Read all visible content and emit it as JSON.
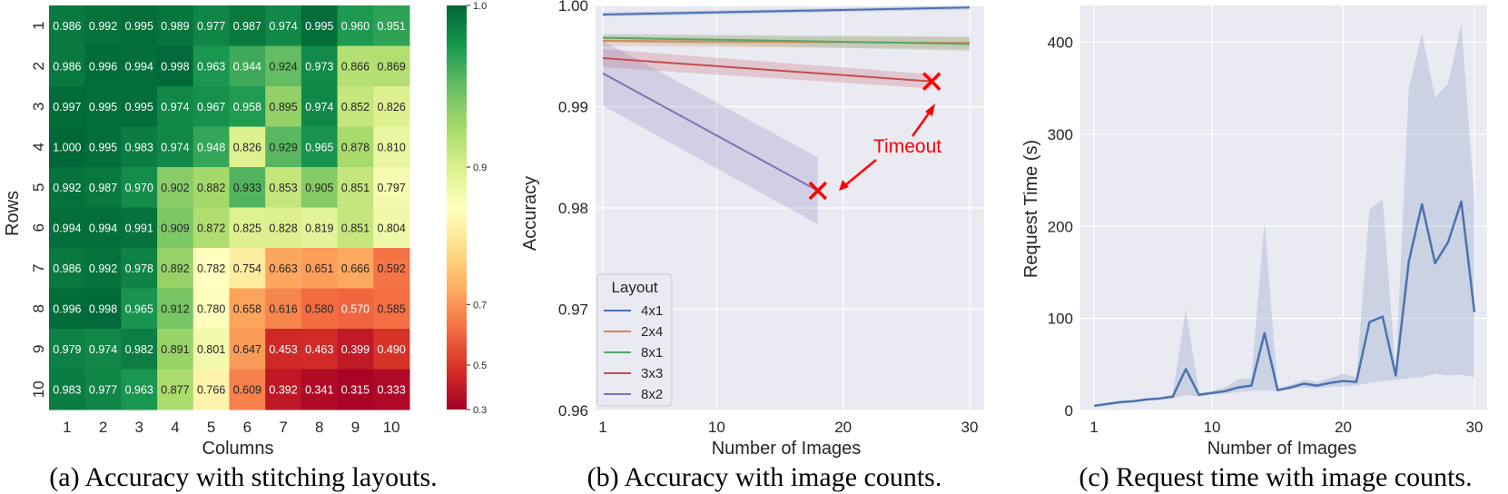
{
  "chart_data": [
    {
      "type": "heatmap",
      "caption": "(a) Accuracy with stitching layouts.",
      "xlabel": "Columns",
      "ylabel": "Rows",
      "x_categories": [
        "1",
        "2",
        "3",
        "4",
        "5",
        "6",
        "7",
        "8",
        "9",
        "10"
      ],
      "y_categories": [
        "1",
        "2",
        "3",
        "4",
        "5",
        "6",
        "7",
        "8",
        "9",
        "10"
      ],
      "values": [
        [
          0.986,
          0.992,
          0.995,
          0.989,
          0.977,
          0.987,
          0.974,
          0.995,
          0.96,
          0.951
        ],
        [
          0.986,
          0.996,
          0.994,
          0.998,
          0.963,
          0.944,
          0.924,
          0.973,
          0.866,
          0.869
        ],
        [
          0.997,
          0.995,
          0.995,
          0.974,
          0.967,
          0.958,
          0.895,
          0.974,
          0.852,
          0.826
        ],
        [
          1.0,
          0.995,
          0.983,
          0.974,
          0.948,
          0.826,
          0.929,
          0.965,
          0.878,
          0.81
        ],
        [
          0.992,
          0.987,
          0.97,
          0.902,
          0.882,
          0.933,
          0.853,
          0.905,
          0.851,
          0.797
        ],
        [
          0.994,
          0.994,
          0.991,
          0.909,
          0.872,
          0.825,
          0.828,
          0.819,
          0.851,
          0.804
        ],
        [
          0.986,
          0.992,
          0.978,
          0.892,
          0.782,
          0.754,
          0.663,
          0.651,
          0.666,
          0.592
        ],
        [
          0.996,
          0.998,
          0.965,
          0.912,
          0.78,
          0.658,
          0.616,
          0.58,
          0.57,
          0.585
        ],
        [
          0.979,
          0.974,
          0.982,
          0.891,
          0.801,
          0.647,
          0.453,
          0.463,
          0.399,
          0.49
        ],
        [
          0.983,
          0.977,
          0.963,
          0.877,
          0.766,
          0.609,
          0.392,
          0.341,
          0.315,
          0.333
        ]
      ],
      "colorbar": {
        "ticks": [
          "1.0",
          "0.9",
          "0.7",
          "0.5",
          "0.3"
        ],
        "tick_values": [
          1.0,
          0.9,
          0.7,
          0.5,
          0.3
        ],
        "colormap": "RdYlGn"
      }
    },
    {
      "type": "line",
      "caption": "(b) Accuracy with image counts.",
      "xlabel": "Number of Images",
      "ylabel": "Accuracy",
      "xlim": [
        1,
        30
      ],
      "ylim": [
        0.96,
        1.0
      ],
      "x_ticks": [
        1,
        10,
        20,
        30
      ],
      "y_ticks": [
        0.96,
        0.97,
        0.98,
        0.99,
        1.0
      ],
      "y_tick_labels": [
        "0.96",
        "0.97",
        "0.98",
        "0.99",
        "1.00"
      ],
      "legend_title": "Layout",
      "legend_position": "lower-left",
      "grid": true,
      "series": [
        {
          "name": "4x1",
          "color": "#4c72b0",
          "x": [
            1,
            30
          ],
          "y": [
            0.9991,
            0.9998
          ],
          "band": [
            0.0002,
            0.0002
          ]
        },
        {
          "name": "2x4",
          "color": "#dd8452",
          "x": [
            1,
            30
          ],
          "y": [
            0.9965,
            0.9963
          ],
          "band": [
            0.0005,
            0.0006
          ]
        },
        {
          "name": "8x1",
          "color": "#55a868",
          "x": [
            1,
            30
          ],
          "y": [
            0.9968,
            0.9962
          ],
          "band": [
            0.0004,
            0.0007
          ]
        },
        {
          "name": "3x3",
          "color": "#c44e52",
          "x": [
            1,
            27
          ],
          "y": [
            0.9948,
            0.9925
          ],
          "band": [
            0.0009,
            0.0007
          ]
        },
        {
          "name": "8x2",
          "color": "#8172b3",
          "x": [
            1,
            18
          ],
          "y": [
            0.9933,
            0.9817
          ],
          "band": [
            0.0032,
            0.0033
          ]
        }
      ],
      "markers": [
        {
          "x": 18,
          "y": 0.9817
        },
        {
          "x": 27,
          "y": 0.9925
        }
      ],
      "annotation": {
        "text": "Timeout",
        "color": "#ff0000"
      }
    },
    {
      "type": "line",
      "caption": "(c) Request time with image counts.",
      "xlabel": "Number of Images",
      "ylabel": "Request Time (s)",
      "xlim": [
        1,
        30
      ],
      "ylim": [
        0,
        440
      ],
      "x_ticks": [
        1,
        10,
        20,
        30
      ],
      "y_ticks": [
        0,
        100,
        200,
        300,
        400
      ],
      "grid": true,
      "series": [
        {
          "color": "#4c72b0",
          "x": [
            1,
            2,
            3,
            4,
            5,
            6,
            7,
            8,
            9,
            10,
            11,
            12,
            13,
            14,
            15,
            16,
            17,
            18,
            19,
            20,
            21,
            22,
            23,
            24,
            25,
            26,
            27,
            28,
            29,
            30
          ],
          "y": [
            5,
            7,
            9,
            10,
            12,
            13,
            15,
            45,
            17,
            19,
            21,
            25,
            27,
            84,
            22,
            25,
            29,
            27,
            30,
            32,
            31,
            96,
            102,
            38,
            162,
            224,
            160,
            183,
            227,
            107
          ],
          "lower": [
            5,
            6,
            8,
            9,
            11,
            12,
            13,
            17,
            15,
            17,
            18,
            20,
            21,
            22,
            21,
            23,
            25,
            24,
            26,
            26,
            27,
            30,
            32,
            33,
            35,
            36,
            40,
            38,
            39,
            36
          ],
          "upper": [
            5,
            8,
            10,
            11,
            13,
            14,
            17,
            111,
            19,
            21,
            25,
            34,
            35,
            205,
            24,
            28,
            33,
            31,
            35,
            40,
            36,
            218,
            230,
            42,
            350,
            410,
            340,
            355,
            420,
            228
          ]
        }
      ]
    }
  ]
}
